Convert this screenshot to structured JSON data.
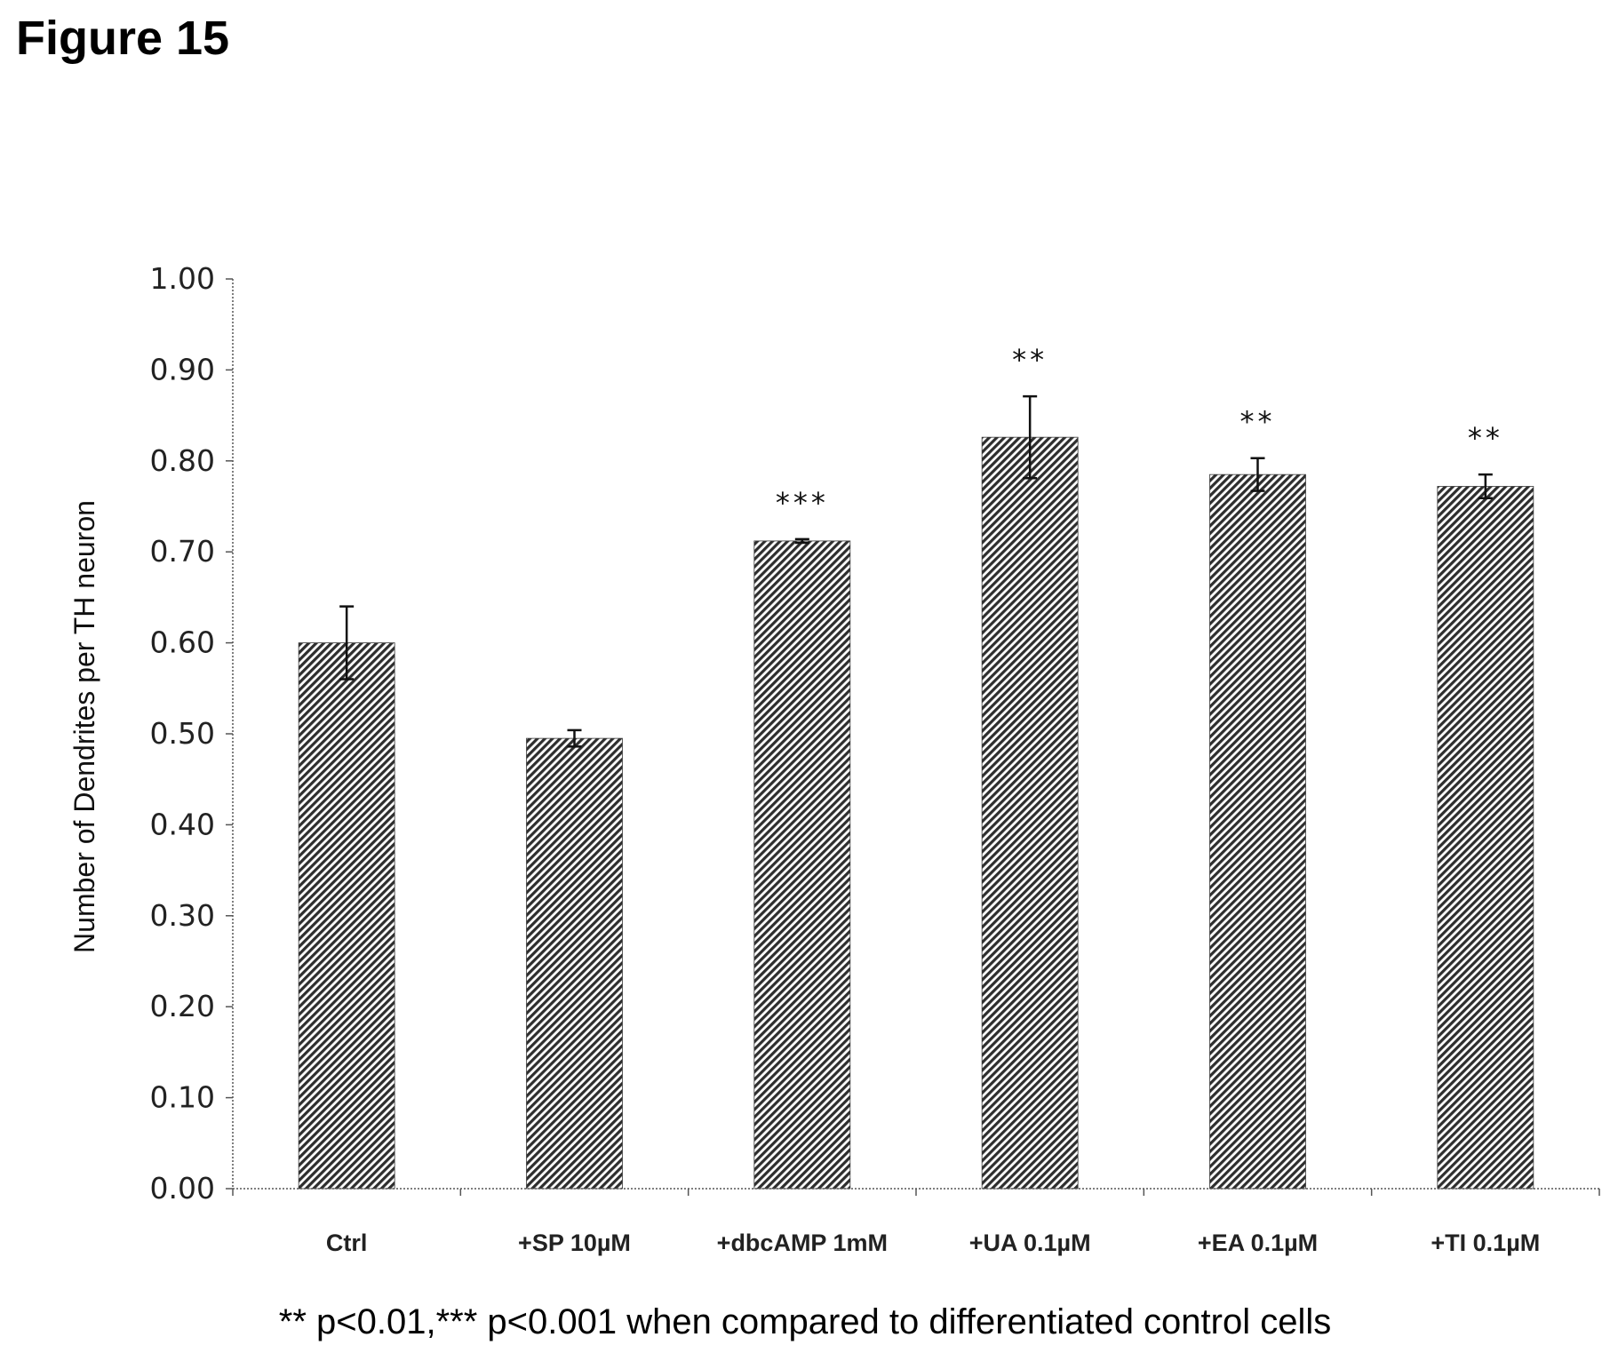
{
  "figure": {
    "title": "Figure 15",
    "footnote": "** p<0.01,*** p<0.001 when compared to differentiated control cells"
  },
  "chart_data": {
    "type": "bar",
    "title": "",
    "xlabel": "",
    "ylabel": "Number of Dendrites per TH neuron",
    "ylim": [
      0,
      1.0
    ],
    "yticks": [
      "0.00",
      "0.10",
      "0.20",
      "0.30",
      "0.40",
      "0.50",
      "0.60",
      "0.70",
      "0.80",
      "0.90",
      "1.00"
    ],
    "categories": [
      "Ctrl",
      "+SP 10µM",
      "+dbcAMP 1mM",
      "+UA 0.1µM",
      "+EA 0.1µM",
      "+TI 0.1µM"
    ],
    "values": [
      0.6,
      0.495,
      0.712,
      0.826,
      0.785,
      0.772
    ],
    "errors": [
      0.04,
      0.009,
      0.002,
      0.045,
      0.018,
      0.013
    ],
    "significance": [
      "",
      "",
      "***",
      "**",
      "**",
      "**"
    ],
    "bar_fill": "hatched",
    "colors": {
      "bar": "#3a3a3a",
      "axis": "#555555",
      "text": "#222222"
    },
    "grid": false,
    "legend": "none"
  }
}
